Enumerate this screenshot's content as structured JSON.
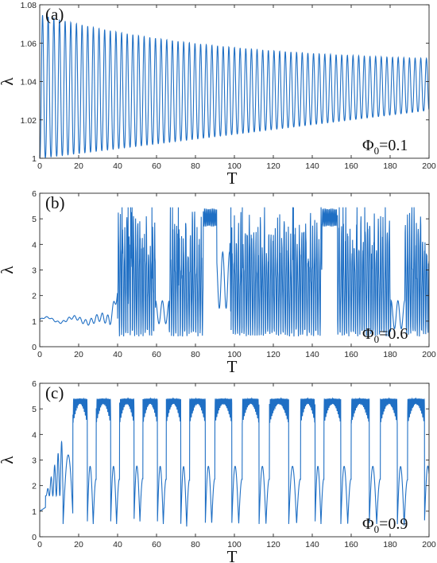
{
  "chart_data": [
    {
      "type": "line",
      "panel_label": "(a)",
      "annotation": {
        "symbol": "Φ",
        "subscript": "0",
        "value": "=0.1"
      },
      "xlabel": "T",
      "ylabel": "λ",
      "xlim": [
        0,
        200
      ],
      "ylim": [
        1,
        1.08
      ],
      "xticks": [
        "0",
        "20",
        "40",
        "60",
        "80",
        "100",
        "120",
        "140",
        "160",
        "180",
        "200"
      ],
      "yticks": [
        "1",
        "1.02",
        "1.04",
        "1.06",
        "1.08"
      ],
      "color": "#1f6fc4",
      "series": [
        {
          "model": "damped-oscillation",
          "lower": 1.0,
          "upper_start": 1.075,
          "upper_end": 1.052,
          "period": 2.9,
          "x_range": [
            0,
            200
          ]
        }
      ]
    },
    {
      "type": "line",
      "panel_label": "(b)",
      "annotation": {
        "symbol": "Φ",
        "subscript": "0",
        "value": "=0.6"
      },
      "xlabel": "T",
      "ylabel": "λ",
      "xlim": [
        0,
        200
      ],
      "ylim": [
        0,
        6
      ],
      "xticks": [
        "0",
        "20",
        "40",
        "60",
        "80",
        "100",
        "120",
        "140",
        "160",
        "180",
        "200"
      ],
      "yticks": [
        "0",
        "1",
        "2",
        "3",
        "4",
        "5",
        "6"
      ],
      "color": "#1f6fc4",
      "series": [
        {
          "model": "small-oscillation",
          "x_range": [
            0,
            40
          ],
          "baseline": 1.05,
          "amplitude_range": [
            0.05,
            0.45
          ]
        },
        {
          "model": "chaotic-oscillation",
          "x_range": [
            40,
            200
          ],
          "min": 0.4,
          "max": 5.45,
          "plateaus": [
            [
              84,
              91
            ],
            [
              145,
              153
            ]
          ],
          "plateau_range": [
            4.7,
            5.4
          ],
          "dips": [
            [
              63,
              0.9,
              1.8
            ],
            [
              94,
              1.5,
              3.7
            ],
            [
              184,
              0.7,
              1.8
            ]
          ]
        }
      ]
    },
    {
      "type": "line",
      "panel_label": "(c)",
      "annotation": {
        "symbol": "Φ",
        "subscript": "0",
        "value": "=0.9"
      },
      "xlabel": "T",
      "ylabel": "λ",
      "xlim": [
        0,
        200
      ],
      "ylim": [
        0,
        6
      ],
      "xticks": [
        "0",
        "20",
        "40",
        "60",
        "80",
        "100",
        "120",
        "140",
        "160",
        "180",
        "200"
      ],
      "yticks": [
        "0",
        "1",
        "2",
        "3",
        "4",
        "5",
        "6"
      ],
      "color": "#1f6fc4",
      "series": [
        {
          "model": "bursting-oscillation",
          "x_range": [
            0,
            200
          ],
          "band_range": [
            4.5,
            5.4
          ],
          "burst_starts": [
            17,
            29,
            41,
            53,
            65,
            77,
            90,
            104,
            118,
            134,
            146,
            160,
            175,
            189
          ],
          "deep_minima": [
            0.5,
            0.5,
            0.6,
            0.5,
            0.4,
            0.5,
            0.5,
            0.5,
            0.5,
            0.5,
            0.5,
            0.5,
            0.4,
            0.6
          ]
        }
      ]
    }
  ]
}
